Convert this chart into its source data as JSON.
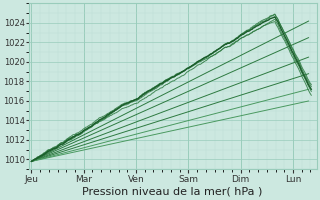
{
  "bg_color": "#cce8e0",
  "grid_major_color": "#99ccbb",
  "grid_minor_color": "#bbddd5",
  "xlabel": "Pression niveau de la mer( hPa )",
  "xlabel_fontsize": 8,
  "tick_labels": [
    "Jeu",
    "Mar",
    "Ven",
    "Sam",
    "Dim",
    "Lun"
  ],
  "ylim": [
    1009.0,
    1026.0
  ],
  "xlim": [
    -0.05,
    5.45
  ],
  "yticks": [
    1010,
    1012,
    1014,
    1016,
    1018,
    1020,
    1022,
    1024
  ],
  "day_positions": [
    0,
    1,
    2,
    3,
    4,
    5
  ],
  "dark_green": "#1a5c2a",
  "mid_green": "#2d7a40",
  "light_green": "#4a9960"
}
